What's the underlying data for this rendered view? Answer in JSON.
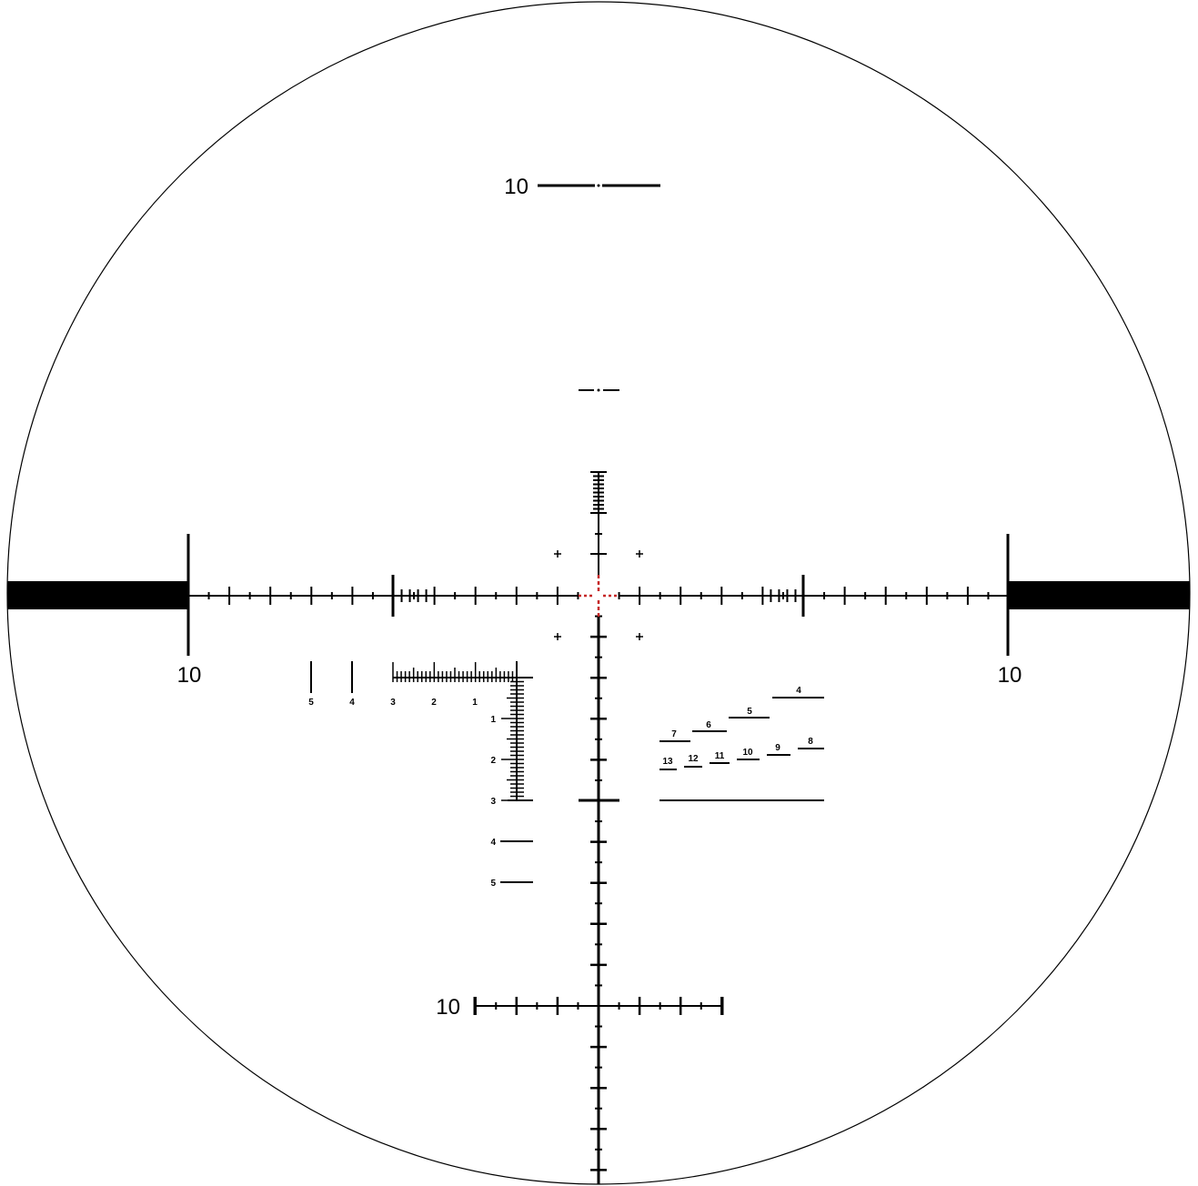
{
  "colors": {
    "ink": "#000000",
    "center_accent": "#c62828",
    "background": "#ffffff"
  },
  "labels": {
    "left_bar": "10",
    "right_bar": "10",
    "top_bar": "10",
    "bottom_bar": "10"
  },
  "range_scale": {
    "horizontal": [
      "5",
      "4",
      "3",
      "2",
      "1"
    ],
    "vertical": [
      "1",
      "2",
      "3",
      "4",
      "5"
    ]
  },
  "stadia": [
    "4",
    "5",
    "6",
    "7",
    "8",
    "9",
    "10",
    "11",
    "12",
    "13"
  ]
}
